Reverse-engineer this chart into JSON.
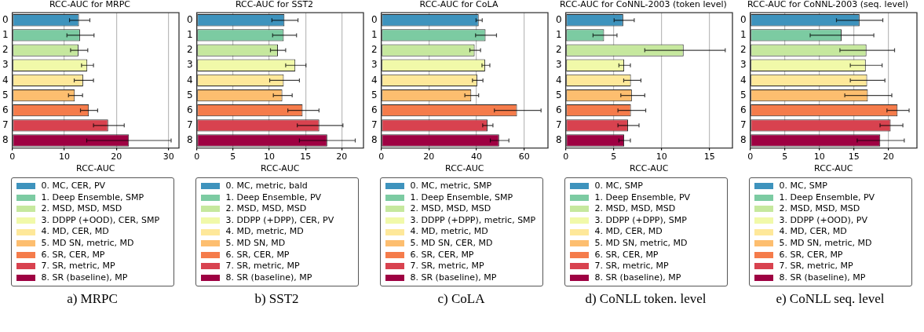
{
  "chart_data": [
    {
      "type": "bar",
      "orientation": "horizontal",
      "stacked": true,
      "title": "RCC-AUC for MRPC",
      "xlabel": "RCC-AUC",
      "categories": [
        "0",
        "1",
        "2",
        "3",
        "4",
        "5",
        "6",
        "7",
        "8"
      ],
      "xlim": [
        0,
        32
      ],
      "xticks": [
        0,
        10,
        20,
        30
      ],
      "grid": "x",
      "legend": "bottom",
      "annotations": [
        "a) MRPC"
      ],
      "series": [
        {
          "name": "0. MC, CER, PV",
          "color": "#3e93bd",
          "values": [
            12.8,
            null,
            null,
            null,
            null,
            null,
            null,
            null,
            null
          ],
          "errors": [
            [
              10.9,
              14.8
            ],
            null,
            null,
            null,
            null,
            null,
            null,
            null,
            null
          ]
        },
        {
          "name": "1. Deep Ensemble, SMP",
          "color": "#7ccba2",
          "values": [
            null,
            13.0,
            null,
            null,
            null,
            null,
            null,
            null,
            null
          ],
          "errors": [
            null,
            [
              10.4,
              15.6
            ],
            null,
            null,
            null,
            null,
            null,
            null,
            null
          ]
        },
        {
          "name": "2. MSD, MSD, MSD",
          "color": "#c6e89e",
          "values": [
            null,
            null,
            12.7,
            null,
            null,
            null,
            null,
            null,
            null
          ],
          "errors": [
            null,
            null,
            [
              11.1,
              14.4
            ],
            null,
            null,
            null,
            null,
            null,
            null
          ]
        },
        {
          "name": "3. DDPP (+OOD), CER, SMP",
          "color": "#f1f9a9",
          "values": [
            null,
            null,
            null,
            14.4,
            null,
            null,
            null,
            null,
            null
          ],
          "errors": [
            null,
            null,
            null,
            [
              13.2,
              15.5
            ],
            null,
            null,
            null,
            null,
            null
          ]
        },
        {
          "name": "4. MD, CER, MD",
          "color": "#fee89a",
          "values": [
            null,
            null,
            null,
            null,
            13.6,
            null,
            null,
            null,
            null
          ],
          "errors": [
            null,
            null,
            null,
            null,
            [
              11.8,
              15.5
            ],
            null,
            null,
            null,
            null
          ]
        },
        {
          "name": "5. MD SN, metric, MD",
          "color": "#fdbe6f",
          "values": [
            null,
            null,
            null,
            null,
            null,
            12.0,
            null,
            null,
            null
          ],
          "errors": [
            null,
            null,
            null,
            null,
            null,
            [
              10.7,
              13.4
            ],
            null,
            null,
            null
          ]
        },
        {
          "name": "6. SR, CER, MP",
          "color": "#f57c4b",
          "values": [
            null,
            null,
            null,
            null,
            null,
            null,
            14.7,
            null,
            null
          ],
          "errors": [
            null,
            null,
            null,
            null,
            null,
            null,
            [
              13.0,
              16.3
            ],
            null,
            null
          ]
        },
        {
          "name": "7. SR, metric, MP",
          "color": "#d8424f",
          "values": [
            null,
            null,
            null,
            null,
            null,
            null,
            null,
            18.4,
            null
          ],
          "errors": [
            null,
            null,
            null,
            null,
            null,
            null,
            null,
            [
              15.5,
              21.4
            ],
            null
          ]
        },
        {
          "name": "8. SR (baseline), MP",
          "color": "#9e0142",
          "values": [
            null,
            null,
            null,
            null,
            null,
            null,
            null,
            null,
            22.4
          ],
          "errors": [
            null,
            null,
            null,
            null,
            null,
            null,
            null,
            null,
            [
              14.2,
              30.4
            ]
          ]
        }
      ]
    },
    {
      "type": "bar",
      "orientation": "horizontal",
      "stacked": true,
      "title": "RCC-AUC for SST2",
      "xlabel": "RCC-AUC",
      "categories": [
        "0",
        "1",
        "2",
        "3",
        "4",
        "5",
        "6",
        "7",
        "8"
      ],
      "xlim": [
        0,
        23
      ],
      "xticks": [
        0,
        5,
        10,
        15,
        20
      ],
      "grid": "x",
      "legend": "bottom",
      "annotations": [
        "b) SST2"
      ],
      "series": [
        {
          "name": "0. MC, metric, bald",
          "color": "#3e93bd",
          "values": [
            12.1,
            null,
            null,
            null,
            null,
            null,
            null,
            null,
            null
          ],
          "errors": [
            [
              10.3,
              13.9
            ],
            null,
            null,
            null,
            null,
            null,
            null,
            null,
            null
          ]
        },
        {
          "name": "1. Deep Ensemble, PV",
          "color": "#7ccba2",
          "values": [
            null,
            12.0,
            null,
            null,
            null,
            null,
            null,
            null,
            null
          ],
          "errors": [
            null,
            [
              10.4,
              13.7
            ],
            null,
            null,
            null,
            null,
            null,
            null,
            null
          ]
        },
        {
          "name": "2. MSD, MSD, MSD",
          "color": "#c6e89e",
          "values": [
            null,
            null,
            11.2,
            null,
            null,
            null,
            null,
            null,
            null
          ],
          "errors": [
            null,
            null,
            [
              10.1,
              12.2
            ],
            null,
            null,
            null,
            null,
            null,
            null
          ]
        },
        {
          "name": "3. DDPP (+DPP), CER, PV",
          "color": "#f1f9a9",
          "values": [
            null,
            null,
            null,
            13.6,
            null,
            null,
            null,
            null,
            null
          ],
          "errors": [
            null,
            null,
            null,
            [
              12.2,
              15.0
            ],
            null,
            null,
            null,
            null,
            null
          ]
        },
        {
          "name": "4. MD, metric, MD",
          "color": "#fee89a",
          "values": [
            null,
            null,
            null,
            null,
            12.0,
            null,
            null,
            null,
            null
          ],
          "errors": [
            null,
            null,
            null,
            null,
            [
              10.0,
              14.1
            ],
            null,
            null,
            null,
            null
          ]
        },
        {
          "name": "5. MD SN, MD",
          "color": "#fdbe6f",
          "values": [
            null,
            null,
            null,
            null,
            null,
            11.8,
            null,
            null,
            null
          ],
          "errors": [
            null,
            null,
            null,
            null,
            null,
            [
              10.5,
              13.1
            ],
            null,
            null,
            null
          ]
        },
        {
          "name": "6. SR, CER, MP",
          "color": "#f57c4b",
          "values": [
            null,
            null,
            null,
            null,
            null,
            null,
            14.6,
            null,
            null
          ],
          "errors": [
            null,
            null,
            null,
            null,
            null,
            null,
            [
              12.5,
              16.8
            ],
            null,
            null
          ]
        },
        {
          "name": "7. SR, metric, MP",
          "color": "#d8424f",
          "values": [
            null,
            null,
            null,
            null,
            null,
            null,
            null,
            16.9,
            null
          ],
          "errors": [
            null,
            null,
            null,
            null,
            null,
            null,
            null,
            [
              13.8,
              20.1
            ],
            null
          ]
        },
        {
          "name": "8. SR (baseline), MP",
          "color": "#9e0142",
          "values": [
            null,
            null,
            null,
            null,
            null,
            null,
            null,
            null,
            18.0
          ],
          "errors": [
            null,
            null,
            null,
            null,
            null,
            null,
            null,
            null,
            [
              14.1,
              21.8
            ]
          ]
        }
      ]
    },
    {
      "type": "bar",
      "orientation": "horizontal",
      "stacked": true,
      "title": "RCC-AUC for CoLA",
      "xlabel": "RCC-AUC",
      "categories": [
        "0",
        "1",
        "2",
        "3",
        "4",
        "5",
        "6",
        "7",
        "8"
      ],
      "xlim": [
        0,
        70
      ],
      "xticks": [
        0,
        20,
        40,
        60
      ],
      "grid": "x",
      "legend": "bottom",
      "annotations": [
        "c) CoLA"
      ],
      "series": [
        {
          "name": "0. MC, metric, SMP",
          "color": "#3e93bd",
          "values": [
            40.9,
            null,
            null,
            null,
            null,
            null,
            null,
            null,
            null
          ],
          "errors": [
            [
              39.6,
              42.2
            ],
            null,
            null,
            null,
            null,
            null,
            null,
            null,
            null
          ]
        },
        {
          "name": "1. Deep Ensemble, SMP",
          "color": "#7ccba2",
          "values": [
            null,
            43.8,
            null,
            null,
            null,
            null,
            null,
            null,
            null
          ],
          "errors": [
            null,
            [
              39.4,
              48.2
            ],
            null,
            null,
            null,
            null,
            null,
            null,
            null
          ]
        },
        {
          "name": "2. MSD, MSD, MSD",
          "color": "#c6e89e",
          "values": [
            null,
            null,
            39.2,
            null,
            null,
            null,
            null,
            null,
            null
          ],
          "errors": [
            null,
            null,
            [
              37.0,
              41.5
            ],
            null,
            null,
            null,
            null,
            null,
            null
          ]
        },
        {
          "name": "3. DDPP (+DPP), metric, SMP",
          "color": "#f1f9a9",
          "values": [
            null,
            null,
            null,
            43.6,
            null,
            null,
            null,
            null,
            null
          ],
          "errors": [
            null,
            null,
            null,
            [
              42.1,
              45.4
            ],
            null,
            null,
            null,
            null,
            null
          ]
        },
        {
          "name": "4. MD, metric, MD",
          "color": "#fee89a",
          "values": [
            null,
            null,
            null,
            null,
            40.3,
            null,
            null,
            null,
            null
          ],
          "errors": [
            null,
            null,
            null,
            null,
            [
              38.1,
              42.5
            ],
            null,
            null,
            null,
            null
          ]
        },
        {
          "name": "5. MD SN, CER, MD",
          "color": "#fdbe6f",
          "values": [
            null,
            null,
            null,
            null,
            null,
            37.8,
            null,
            null,
            null
          ],
          "errors": [
            null,
            null,
            null,
            null,
            null,
            [
              34.9,
              40.7
            ],
            null,
            null,
            null
          ]
        },
        {
          "name": "6. SR, CER, MP",
          "color": "#f57c4b",
          "values": [
            null,
            null,
            null,
            null,
            null,
            null,
            57.0,
            null,
            null
          ],
          "errors": [
            null,
            null,
            null,
            null,
            null,
            null,
            [
              47.3,
              66.9
            ],
            null,
            null
          ]
        },
        {
          "name": "7. SR, metric, MP",
          "color": "#d8424f",
          "values": [
            null,
            null,
            null,
            null,
            null,
            null,
            null,
            44.6,
            null
          ],
          "errors": [
            null,
            null,
            null,
            null,
            null,
            null,
            null,
            [
              42.4,
              46.7
            ],
            null
          ]
        },
        {
          "name": "8. SR (baseline), MP",
          "color": "#9e0142",
          "values": [
            null,
            null,
            null,
            null,
            null,
            null,
            null,
            null,
            49.5
          ],
          "errors": [
            null,
            null,
            null,
            null,
            null,
            null,
            null,
            null,
            [
              45.6,
              53.4
            ]
          ]
        }
      ]
    },
    {
      "type": "bar",
      "orientation": "horizontal",
      "stacked": true,
      "title": "RCC-AUC for CoNNL-2003 (token level)",
      "xlabel": "RCC-AUC",
      "categories": [
        "0",
        "1",
        "2",
        "3",
        "4",
        "5",
        "6",
        "7",
        "8"
      ],
      "xlim": [
        0,
        17.4
      ],
      "xticks": [
        0,
        5,
        10,
        15
      ],
      "grid": "x",
      "legend": "bottom",
      "annotations": [
        "d) CoNLL token. level"
      ],
      "series": [
        {
          "name": "0. MC, SMP",
          "color": "#3e93bd",
          "values": [
            6.0,
            null,
            null,
            null,
            null,
            null,
            null,
            null,
            null
          ],
          "errors": [
            [
              5.0,
              7.1
            ],
            null,
            null,
            null,
            null,
            null,
            null,
            null,
            null
          ]
        },
        {
          "name": "1. Deep Ensemble, PV",
          "color": "#7ccba2",
          "values": [
            null,
            4.0,
            null,
            null,
            null,
            null,
            null,
            null,
            null
          ],
          "errors": [
            null,
            [
              2.8,
              5.3
            ],
            null,
            null,
            null,
            null,
            null,
            null,
            null
          ]
        },
        {
          "name": "2. MSD, MSD, MSD",
          "color": "#c6e89e",
          "values": [
            null,
            null,
            12.3,
            null,
            null,
            null,
            null,
            null,
            null
          ],
          "errors": [
            null,
            null,
            [
              8.2,
              16.6
            ],
            null,
            null,
            null,
            null,
            null,
            null
          ]
        },
        {
          "name": "3. DDPP (+DPP), SMP",
          "color": "#f1f9a9",
          "values": [
            null,
            null,
            null,
            6.1,
            null,
            null,
            null,
            null,
            null
          ],
          "errors": [
            null,
            null,
            null,
            [
              5.5,
              6.7
            ],
            null,
            null,
            null,
            null,
            null
          ]
        },
        {
          "name": "4. MD, CER, MD",
          "color": "#fee89a",
          "values": [
            null,
            null,
            null,
            null,
            6.8,
            null,
            null,
            null,
            null
          ],
          "errors": [
            null,
            null,
            null,
            null,
            [
              6.0,
              7.8
            ],
            null,
            null,
            null,
            null
          ]
        },
        {
          "name": "5. MD SN, metric, MD",
          "color": "#fdbe6f",
          "values": [
            null,
            null,
            null,
            null,
            null,
            6.9,
            null,
            null,
            null
          ],
          "errors": [
            null,
            null,
            null,
            null,
            null,
            [
              5.7,
              8.2
            ],
            null,
            null,
            null
          ]
        },
        {
          "name": "6. SR, CER, MP",
          "color": "#f57c4b",
          "values": [
            null,
            null,
            null,
            null,
            null,
            null,
            6.8,
            null,
            null
          ],
          "errors": [
            null,
            null,
            null,
            null,
            null,
            null,
            [
              5.4,
              8.3
            ],
            null,
            null
          ]
        },
        {
          "name": "7. SR, metric, MP",
          "color": "#d8424f",
          "values": [
            null,
            null,
            null,
            null,
            null,
            null,
            null,
            6.5,
            null
          ],
          "errors": [
            null,
            null,
            null,
            null,
            null,
            null,
            null,
            [
              5.4,
              7.6
            ],
            null
          ]
        },
        {
          "name": "8. SR (baseline), MP",
          "color": "#9e0142",
          "values": [
            null,
            null,
            null,
            null,
            null,
            null,
            null,
            null,
            6.1
          ],
          "errors": [
            null,
            null,
            null,
            null,
            null,
            null,
            null,
            null,
            [
              5.5,
              6.7
            ]
          ]
        }
      ]
    },
    {
      "type": "bar",
      "orientation": "horizontal",
      "stacked": true,
      "title": "RCC-AUC for CoNNL-2003 (seq. level)",
      "xlabel": "RCC-AUC",
      "categories": [
        "0",
        "1",
        "2",
        "3",
        "4",
        "5",
        "6",
        "7",
        "8"
      ],
      "xlim": [
        0,
        24.1
      ],
      "xticks": [
        0,
        5,
        10,
        15,
        20
      ],
      "grid": "x",
      "legend": "bottom",
      "annotations": [
        "e) CoNLL seq. level"
      ],
      "series": [
        {
          "name": "0. MC, SMP",
          "color": "#3e93bd",
          "values": [
            15.8,
            null,
            null,
            null,
            null,
            null,
            null,
            null,
            null
          ],
          "errors": [
            [
              12.4,
              19.1
            ],
            null,
            null,
            null,
            null,
            null,
            null,
            null,
            null
          ]
        },
        {
          "name": "1. Deep Ensemble, PV",
          "color": "#7ccba2",
          "values": [
            null,
            13.2,
            null,
            null,
            null,
            null,
            null,
            null,
            null
          ],
          "errors": [
            null,
            [
              8.6,
              17.8
            ],
            null,
            null,
            null,
            null,
            null,
            null,
            null
          ]
        },
        {
          "name": "2. MSD, MSD, MSD",
          "color": "#c6e89e",
          "values": [
            null,
            null,
            16.8,
            null,
            null,
            null,
            null,
            null,
            null
          ],
          "errors": [
            null,
            null,
            [
              12.9,
              20.8
            ],
            null,
            null,
            null,
            null,
            null,
            null
          ]
        },
        {
          "name": "3. DDPP (+OOD), PV",
          "color": "#f1f9a9",
          "values": [
            null,
            null,
            null,
            16.7,
            null,
            null,
            null,
            null,
            null
          ],
          "errors": [
            null,
            null,
            null,
            [
              14.4,
              19.0
            ],
            null,
            null,
            null,
            null,
            null
          ]
        },
        {
          "name": "4. MD, CER, MD",
          "color": "#fee89a",
          "values": [
            null,
            null,
            null,
            null,
            16.9,
            null,
            null,
            null,
            null
          ],
          "errors": [
            null,
            null,
            null,
            null,
            [
              14.4,
              19.4
            ],
            null,
            null,
            null,
            null
          ]
        },
        {
          "name": "5. MD SN, metric, MD",
          "color": "#fdbe6f",
          "values": [
            null,
            null,
            null,
            null,
            null,
            17.0,
            null,
            null,
            null
          ],
          "errors": [
            null,
            null,
            null,
            null,
            null,
            [
              13.6,
              20.4
            ],
            null,
            null,
            null
          ]
        },
        {
          "name": "6. SR, CER, MP",
          "color": "#f57c4b",
          "values": [
            null,
            null,
            null,
            null,
            null,
            null,
            21.3,
            null,
            null
          ],
          "errors": [
            null,
            null,
            null,
            null,
            null,
            null,
            [
              19.7,
              22.9
            ],
            null,
            null
          ]
        },
        {
          "name": "7. SR, metric, MP",
          "color": "#d8424f",
          "values": [
            null,
            null,
            null,
            null,
            null,
            null,
            null,
            20.3,
            null
          ],
          "errors": [
            null,
            null,
            null,
            null,
            null,
            null,
            null,
            [
              18.7,
              22.0
            ],
            null
          ]
        },
        {
          "name": "8. SR (baseline), MP",
          "color": "#9e0142",
          "values": [
            null,
            null,
            null,
            null,
            null,
            null,
            null,
            null,
            18.8
          ],
          "errors": [
            null,
            null,
            null,
            null,
            null,
            null,
            null,
            null,
            [
              15.4,
              22.2
            ]
          ]
        }
      ]
    }
  ]
}
